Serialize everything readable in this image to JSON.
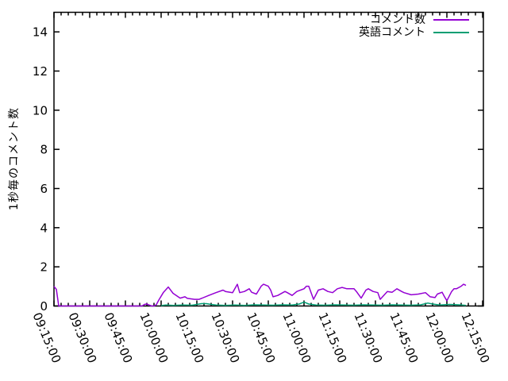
{
  "chart_data": {
    "type": "line",
    "title": "",
    "xlabel": "",
    "ylabel": "1秒毎のコメント数",
    "ylim": [
      0,
      15
    ],
    "y_ticks": [
      0,
      2,
      4,
      6,
      8,
      10,
      12,
      14
    ],
    "x_tick_labels": [
      "09:15:00",
      "09:30:00",
      "09:45:00",
      "10:00:00",
      "10:15:00",
      "10:30:00",
      "10:45:00",
      "11:00:00",
      "11:15:00",
      "11:30:00",
      "11:45:00",
      "12:00:00",
      "12:15:00"
    ],
    "x_major_step_min": 15,
    "x_minor_step_min": 3,
    "x_range_min": 180,
    "x_unit": "minutes since 09:15:00",
    "grid": false,
    "legend_position": "inside top-right",
    "axis_color": "#000000",
    "series": [
      {
        "name": "コメント数",
        "color": "#9400d3",
        "points": [
          [
            0,
            1.0
          ],
          [
            1,
            0.85
          ],
          [
            2,
            0
          ],
          [
            6,
            0
          ],
          [
            10,
            0
          ],
          [
            14,
            0
          ],
          [
            18,
            0
          ],
          [
            22,
            0
          ],
          [
            26,
            0
          ],
          [
            30,
            0
          ],
          [
            34,
            0
          ],
          [
            37,
            0
          ],
          [
            38,
            0.08
          ],
          [
            39,
            0.1
          ],
          [
            40,
            0.05
          ],
          [
            41,
            0
          ],
          [
            42,
            0
          ],
          [
            43,
            0.07
          ],
          [
            44,
            0.3
          ],
          [
            46,
            0.7
          ],
          [
            48,
            0.97
          ],
          [
            50,
            0.65
          ],
          [
            53,
            0.4
          ],
          [
            55,
            0.47
          ],
          [
            56,
            0.39
          ],
          [
            59,
            0.34
          ],
          [
            61,
            0.34
          ],
          [
            65,
            0.54
          ],
          [
            68,
            0.68
          ],
          [
            71,
            0.81
          ],
          [
            72,
            0.74
          ],
          [
            75,
            0.68
          ],
          [
            77,
            1.11
          ],
          [
            78,
            0.68
          ],
          [
            80,
            0.74
          ],
          [
            82,
            0.88
          ],
          [
            83,
            0.7
          ],
          [
            85,
            0.61
          ],
          [
            87,
            1.01
          ],
          [
            88,
            1.11
          ],
          [
            90,
            1.01
          ],
          [
            91,
            0.81
          ],
          [
            92,
            0.47
          ],
          [
            94,
            0.54
          ],
          [
            97,
            0.74
          ],
          [
            98,
            0.68
          ],
          [
            100,
            0.54
          ],
          [
            102,
            0.74
          ],
          [
            105,
            0.88
          ],
          [
            106,
            1.01
          ],
          [
            107,
            1.01
          ],
          [
            109,
            0.34
          ],
          [
            111,
            0.81
          ],
          [
            113,
            0.88
          ],
          [
            115,
            0.74
          ],
          [
            117,
            0.68
          ],
          [
            119,
            0.88
          ],
          [
            121,
            0.95
          ],
          [
            123,
            0.88
          ],
          [
            126,
            0.88
          ],
          [
            127,
            0.74
          ],
          [
            129,
            0.4
          ],
          [
            131,
            0.81
          ],
          [
            132,
            0.88
          ],
          [
            134,
            0.74
          ],
          [
            136,
            0.68
          ],
          [
            137,
            0.34
          ],
          [
            140,
            0.74
          ],
          [
            142,
            0.7
          ],
          [
            144,
            0.88
          ],
          [
            146,
            0.74
          ],
          [
            147,
            0.68
          ],
          [
            150,
            0.57
          ],
          [
            153,
            0.61
          ],
          [
            156,
            0.68
          ],
          [
            158,
            0.47
          ],
          [
            160,
            0.43
          ],
          [
            161,
            0.61
          ],
          [
            163,
            0.7
          ],
          [
            164,
            0.47
          ],
          [
            165,
            0.27
          ],
          [
            167,
            0.74
          ],
          [
            168,
            0.88
          ],
          [
            169,
            0.88
          ],
          [
            171,
            1.01
          ],
          [
            172,
            1.11
          ],
          [
            173,
            1.05
          ]
        ]
      },
      {
        "name": "英語コメント",
        "color": "#009e73",
        "points": [
          [
            45,
            0.02
          ],
          [
            47,
            0.05
          ],
          [
            50,
            0.03
          ],
          [
            54,
            0.05
          ],
          [
            58,
            0.04
          ],
          [
            60,
            0.08
          ],
          [
            62,
            0.12
          ],
          [
            64,
            0.12
          ],
          [
            66,
            0.08
          ],
          [
            68,
            0.05
          ],
          [
            72,
            0.03
          ],
          [
            76,
            0.05
          ],
          [
            80,
            0.03
          ],
          [
            84,
            0.06
          ],
          [
            88,
            0.05
          ],
          [
            92,
            0.04
          ],
          [
            96,
            0.06
          ],
          [
            100,
            0.05
          ],
          [
            103,
            0.1
          ],
          [
            105,
            0.2
          ],
          [
            107,
            0.1
          ],
          [
            110,
            0.05
          ],
          [
            114,
            0.04
          ],
          [
            118,
            0.06
          ],
          [
            122,
            0.05
          ],
          [
            126,
            0.04
          ],
          [
            130,
            0.06
          ],
          [
            134,
            0.05
          ],
          [
            138,
            0.04
          ],
          [
            142,
            0.06
          ],
          [
            146,
            0.05
          ],
          [
            150,
            0.04
          ],
          [
            154,
            0.06
          ],
          [
            157,
            0.15
          ],
          [
            159,
            0.1
          ],
          [
            162,
            0.05
          ],
          [
            166,
            0.08
          ],
          [
            170,
            0.06
          ],
          [
            173,
            0.03
          ]
        ]
      }
    ]
  }
}
